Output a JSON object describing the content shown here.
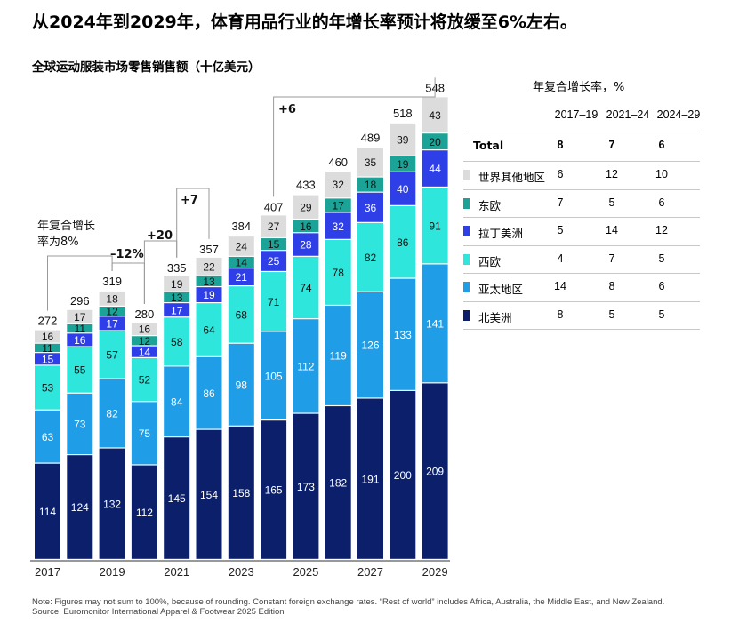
{
  "headline": "从2024年到2029年，体育用品行业的年增长率预计将放缓至6%左右。",
  "chart_data": {
    "type": "bar",
    "stacked": true,
    "title": "全球运动服装市场零售销售额（十亿美元）",
    "categories": [
      "2017",
      "2018",
      "2019",
      "2020",
      "2021",
      "2022",
      "2023",
      "2024",
      "2025",
      "2026",
      "2027",
      "2028",
      "2029"
    ],
    "x_tick_labels": [
      "2017",
      "2019",
      "2021",
      "2023",
      "2025",
      "2027",
      "2029"
    ],
    "totals": [
      272,
      296,
      319,
      280,
      335,
      357,
      384,
      407,
      433,
      460,
      489,
      518,
      548
    ],
    "series": [
      {
        "name": "北美洲",
        "color": "#0b1f6b",
        "values": [
          114,
          124,
          132,
          112,
          145,
          154,
          158,
          165,
          173,
          182,
          191,
          200,
          209
        ]
      },
      {
        "name": "亚太地区",
        "color": "#1f9de6",
        "values": [
          63,
          73,
          82,
          75,
          84,
          86,
          98,
          105,
          112,
          119,
          126,
          133,
          141
        ]
      },
      {
        "name": "西欧",
        "color": "#2fe6dc",
        "values": [
          53,
          55,
          57,
          52,
          58,
          64,
          68,
          71,
          74,
          78,
          82,
          86,
          91
        ]
      },
      {
        "name": "拉丁美洲",
        "color": "#2f3fe8",
        "values": [
          15,
          16,
          17,
          14,
          17,
          19,
          21,
          25,
          28,
          32,
          36,
          40,
          44
        ]
      },
      {
        "name": "东欧",
        "color": "#1aa396",
        "values": [
          11,
          11,
          12,
          12,
          13,
          13,
          14,
          15,
          16,
          17,
          18,
          19,
          20
        ]
      },
      {
        "name": "世界其他地区",
        "color": "#dcdcdc",
        "values": [
          16,
          17,
          18,
          16,
          19,
          22,
          24,
          27,
          29,
          32,
          35,
          39,
          43
        ]
      }
    ],
    "annotations": [
      {
        "text": "年复合增长率为8%",
        "from": "2017",
        "to": "2019"
      },
      {
        "text": "–12%",
        "from": "2019",
        "to": "2020"
      },
      {
        "text": "+20",
        "from": "2020",
        "to": "2021"
      },
      {
        "text": "+7",
        "from": "2021",
        "to": "2022"
      },
      {
        "text": "+6",
        "from": "2024",
        "to": "2029"
      }
    ]
  },
  "annotations_text": {
    "cagr_line1": "年复合增长",
    "cagr_line2": "率为8%",
    "minus12": "–12%",
    "plus20": "+20",
    "plus7": "+7",
    "plus6": "+6"
  },
  "table": {
    "title": "年复合增长率，%",
    "columns": [
      "2017–19",
      "2021–24",
      "2024–29"
    ],
    "total": {
      "label": "Total",
      "values": [
        "8",
        "7",
        "6"
      ]
    },
    "rows": [
      {
        "label": "世界其他地区",
        "values": [
          "6",
          "12",
          "10"
        ],
        "color": "#dcdcdc"
      },
      {
        "label": "东欧",
        "values": [
          "7",
          "5",
          "6"
        ],
        "color": "#1aa396"
      },
      {
        "label": "拉丁美洲",
        "values": [
          "5",
          "14",
          "12"
        ],
        "color": "#2f3fe8"
      },
      {
        "label": "西欧",
        "values": [
          "4",
          "7",
          "5"
        ],
        "color": "#2fe6dc"
      },
      {
        "label": "亚太地区",
        "values": [
          "14",
          "8",
          "6"
        ],
        "color": "#1f9de6"
      },
      {
        "label": "北美洲",
        "values": [
          "8",
          "5",
          "5"
        ],
        "color": "#0b1f6b"
      }
    ]
  },
  "note": {
    "line1": "Note: Figures may not sum to 100%, because of rounding. Constant foreign exchange rates. “Rest of world” includes Africa, Australia, the Middle East, and New Zealand.",
    "line2": "Source: Euromonitor International Apparel & Footwear 2025 Edition"
  }
}
